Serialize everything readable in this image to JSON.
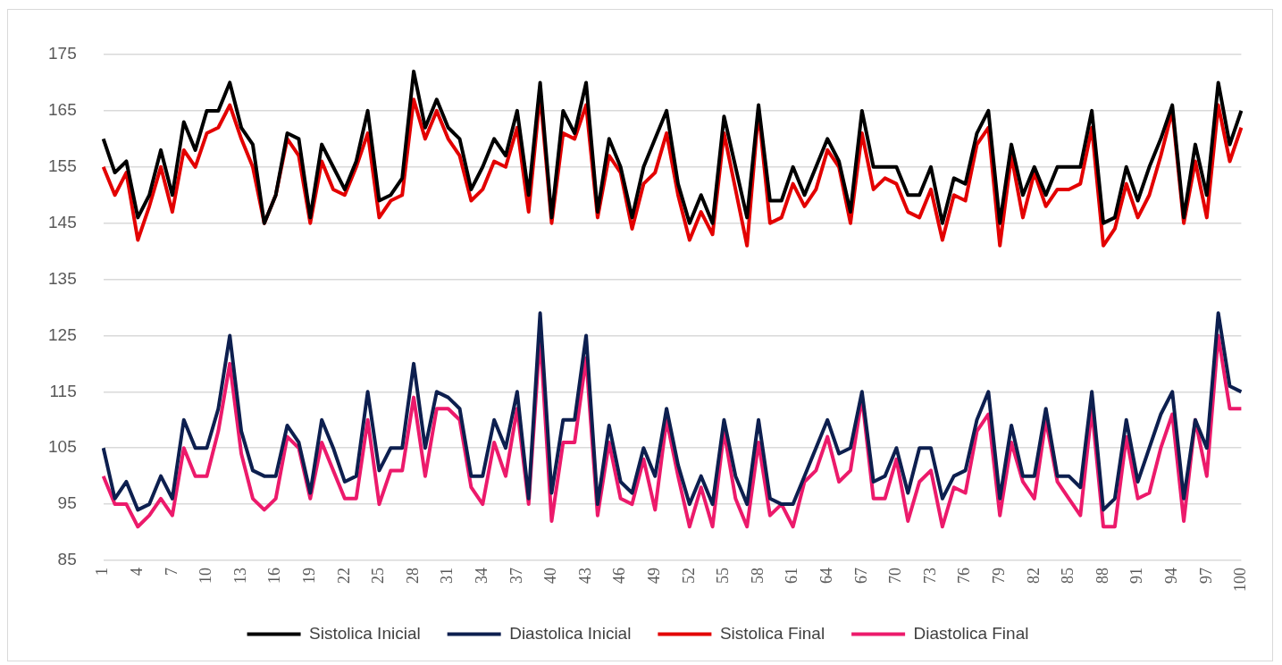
{
  "chart_data": {
    "type": "line",
    "categories": [
      "1",
      null,
      null,
      "4",
      null,
      null,
      "7",
      null,
      null,
      "10",
      null,
      null,
      "13",
      null,
      null,
      "16",
      null,
      null,
      "19",
      null,
      null,
      "22",
      null,
      null,
      "25",
      null,
      null,
      "28",
      null,
      null,
      "31",
      null,
      null,
      "34",
      null,
      null,
      "37",
      null,
      null,
      "40",
      null,
      null,
      "43",
      null,
      null,
      "46",
      null,
      null,
      "49",
      null,
      null,
      "52",
      null,
      null,
      "55",
      null,
      null,
      "58",
      null,
      null,
      "61",
      null,
      null,
      "64",
      null,
      null,
      "67",
      null,
      null,
      "70",
      null,
      null,
      "73",
      null,
      null,
      "76",
      null,
      null,
      "79",
      null,
      null,
      "82",
      null,
      null,
      "85",
      null,
      null,
      "88",
      null,
      null,
      "91",
      null,
      null,
      "94",
      null,
      null,
      "97",
      null,
      null,
      "100"
    ],
    "series": [
      {
        "name": "Sistolica Inicial",
        "color": "#000000",
        "values": [
          160,
          154,
          156,
          146,
          150,
          158,
          150,
          163,
          158,
          165,
          165,
          170,
          162,
          159,
          145,
          150,
          161,
          160,
          146,
          159,
          155,
          151,
          156,
          165,
          149,
          150,
          153,
          172,
          162,
          167,
          162,
          160,
          151,
          155,
          160,
          157,
          165,
          150,
          170,
          146,
          165,
          161,
          170,
          147,
          160,
          155,
          146,
          155,
          160,
          165,
          152,
          145,
          150,
          145,
          164,
          155,
          146,
          166,
          149,
          149,
          155,
          150,
          155,
          160,
          156,
          147,
          165,
          155,
          155,
          155,
          150,
          150,
          155,
          145,
          153,
          152,
          161,
          165,
          145,
          159,
          150,
          155,
          150,
          155,
          155,
          155,
          165,
          145,
          146,
          155,
          149,
          155,
          160,
          166,
          146,
          159,
          150,
          170,
          159,
          165
        ]
      },
      {
        "name": "Diastolica Inicial",
        "color": "#0d1f4f",
        "values": [
          105,
          96,
          99,
          94,
          95,
          100,
          96,
          110,
          105,
          105,
          112,
          125,
          108,
          101,
          100,
          100,
          109,
          106,
          97,
          110,
          105,
          99,
          100,
          115,
          101,
          105,
          105,
          120,
          105,
          115,
          114,
          112,
          100,
          100,
          110,
          105,
          115,
          96,
          129,
          97,
          110,
          110,
          125,
          95,
          109,
          99,
          97,
          105,
          100,
          112,
          102,
          95,
          100,
          95,
          110,
          100,
          95,
          110,
          96,
          95,
          95,
          100,
          105,
          110,
          104,
          105,
          115,
          99,
          100,
          105,
          97,
          105,
          105,
          96,
          100,
          101,
          110,
          115,
          96,
          109,
          100,
          100,
          112,
          100,
          100,
          98,
          115,
          94,
          96,
          110,
          99,
          105,
          111,
          115,
          96,
          110,
          105,
          129,
          116,
          115
        ]
      },
      {
        "name": "Sistolica Final",
        "color": "#e30000",
        "values": [
          155,
          150,
          154,
          142,
          148,
          155,
          147,
          158,
          155,
          161,
          162,
          166,
          160,
          155,
          145,
          150,
          160,
          157,
          145,
          156,
          151,
          150,
          155,
          161,
          146,
          149,
          150,
          167,
          160,
          165,
          160,
          157,
          149,
          151,
          156,
          155,
          162,
          147,
          168,
          145,
          161,
          160,
          166,
          146,
          157,
          154,
          144,
          152,
          154,
          161,
          150,
          142,
          147,
          143,
          161,
          151,
          141,
          165,
          145,
          146,
          152,
          148,
          151,
          158,
          155,
          145,
          161,
          151,
          153,
          152,
          147,
          146,
          151,
          142,
          150,
          149,
          159,
          162,
          141,
          157,
          146,
          154,
          148,
          151,
          151,
          152,
          162,
          141,
          144,
          152,
          146,
          150,
          157,
          165,
          145,
          156,
          146,
          166,
          156,
          162
        ]
      },
      {
        "name": "Diastolica Final",
        "color": "#ec1a6b",
        "values": [
          100,
          95,
          95,
          91,
          93,
          96,
          93,
          105,
          100,
          100,
          108,
          120,
          104,
          96,
          94,
          96,
          107,
          105,
          96,
          106,
          101,
          96,
          96,
          110,
          95,
          101,
          101,
          114,
          100,
          112,
          112,
          110,
          98,
          95,
          106,
          100,
          112,
          95,
          125,
          92,
          106,
          106,
          121,
          93,
          106,
          96,
          95,
          103,
          94,
          110,
          100,
          91,
          98,
          91,
          108,
          96,
          91,
          106,
          93,
          95,
          91,
          99,
          101,
          107,
          99,
          101,
          114,
          96,
          96,
          103,
          92,
          99,
          101,
          91,
          98,
          97,
          108,
          111,
          93,
          106,
          99,
          96,
          110,
          99,
          96,
          93,
          112,
          91,
          91,
          107,
          96,
          97,
          105,
          111,
          92,
          110,
          100,
          125,
          112,
          112
        ]
      }
    ],
    "ylim": [
      85,
      175
    ],
    "yticks": [
      85,
      95,
      105,
      115,
      125,
      135,
      145,
      155,
      165,
      175
    ],
    "grid": "y",
    "legend": "bottom",
    "marker": "none",
    "line_style": "solid"
  }
}
